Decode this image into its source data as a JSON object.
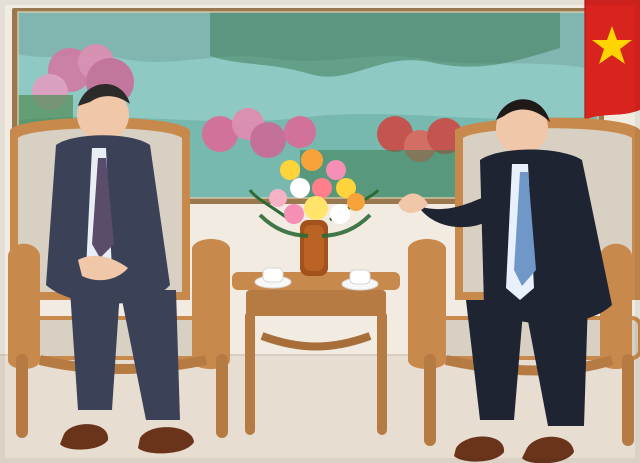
{
  "photo": {
    "subject": "",
    "colors": {
      "wall": "#f1ebe1",
      "floor": "#e7ddd0",
      "painting_sky": "#8ec9c3",
      "painting_water": "#6fb2a8",
      "frame": "#b58c55",
      "flag_red": "#d8231f",
      "flag_star": "#ffd400",
      "wood": "#c8894c",
      "upholstery": "#d8d0c2",
      "suit_left": "#3b4258",
      "suit_right": "#1f2433",
      "tie_left": "#5a4c6b",
      "tie_right": "#6f98c8",
      "shoes": "#6a341b"
    }
  }
}
